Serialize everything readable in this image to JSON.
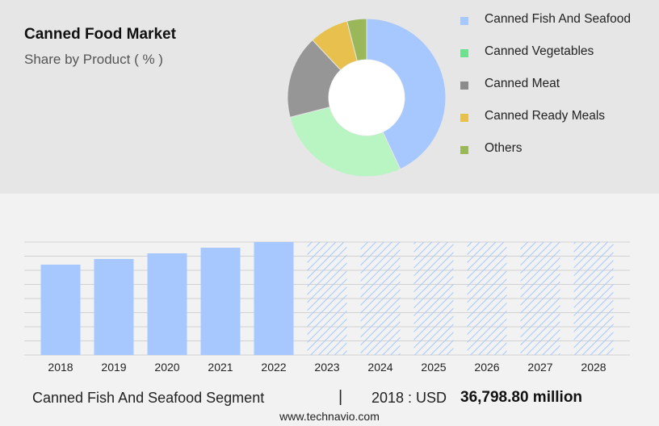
{
  "header": {
    "title": "Canned Food Market",
    "subtitle": "Share by Product ( % )"
  },
  "legend": [
    {
      "label": "Canned Fish And Seafood",
      "color": "#a6c8ff"
    },
    {
      "label": "Canned Vegetables",
      "color": "#6fe08f"
    },
    {
      "label": "Canned Meat",
      "color": "#8c8c8c"
    },
    {
      "label": "Canned Ready Meals",
      "color": "#e8c04e"
    },
    {
      "label": "Others",
      "color": "#9ab85a"
    }
  ],
  "footer": {
    "segment": "Canned Fish And Seafood Segment",
    "separator": "|",
    "year_label": "2018 : USD",
    "value_label": "36,798.80 million",
    "source": "www.technavio.com"
  },
  "chart_data": [
    {
      "type": "pie",
      "title": "Share by Product ( % )",
      "donut": true,
      "categories": [
        "Canned Fish And Seafood",
        "Canned Vegetables",
        "Canned Meat",
        "Canned Ready Meals",
        "Others"
      ],
      "values": [
        43,
        28,
        17,
        8,
        4
      ],
      "colors": [
        "#a6c8ff",
        "#b8f5c3",
        "#969696",
        "#e8c04e",
        "#9ab85a"
      ]
    },
    {
      "type": "bar",
      "categories": [
        "2018",
        "2019",
        "2020",
        "2021",
        "2022",
        "2023",
        "2024",
        "2025",
        "2026",
        "2027",
        "2028"
      ],
      "values": [
        64,
        68,
        72,
        76,
        80,
        80,
        80,
        80,
        80,
        80,
        80
      ],
      "forecast_from_index": 5,
      "ylim": [
        0,
        80
      ],
      "grid": true,
      "color": "#a6c8ff"
    }
  ]
}
